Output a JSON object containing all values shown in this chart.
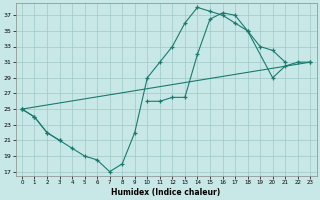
{
  "background_color": "#c8e8e8",
  "grid_color": "#a0c8c8",
  "line_color": "#1a7a6e",
  "xlabel": "Humidex (Indice chaleur)",
  "xlim": [
    -0.5,
    23.5
  ],
  "ylim": [
    16.5,
    38.5
  ],
  "xtick_vals": [
    0,
    1,
    2,
    3,
    4,
    5,
    6,
    7,
    8,
    9,
    10,
    11,
    12,
    13,
    14,
    15,
    16,
    17,
    18,
    19,
    20,
    21,
    22,
    23
  ],
  "ytick_vals": [
    17,
    19,
    21,
    23,
    25,
    27,
    29,
    31,
    33,
    35,
    37
  ],
  "curve1_x": [
    0,
    1,
    2,
    3,
    4,
    5,
    6,
    7,
    8,
    9,
    10,
    11,
    12,
    13,
    14,
    15,
    16,
    17,
    18,
    19,
    20,
    21
  ],
  "curve1_y": [
    25,
    24,
    22,
    21,
    20,
    19,
    18.5,
    17,
    18,
    22,
    29,
    31,
    33,
    36,
    38,
    37.5,
    37,
    36,
    35,
    33,
    32.5,
    31
  ],
  "curve2_x": [
    0,
    1,
    2,
    3,
    10,
    11,
    12,
    13,
    14,
    15,
    16,
    17,
    18,
    20,
    21,
    22,
    23
  ],
  "curve2_y": [
    25,
    24,
    22,
    21,
    26,
    26,
    26.5,
    26.5,
    32,
    36.5,
    37.3,
    37,
    35,
    29,
    30.5,
    31,
    31
  ],
  "curve3_x": [
    0,
    23
  ],
  "curve3_y": [
    25,
    31
  ]
}
